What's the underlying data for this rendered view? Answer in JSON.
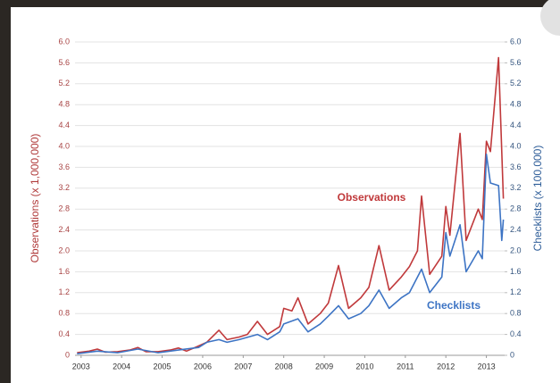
{
  "chart_data": {
    "type": "line",
    "y_label": "Observations (x 1,000,000)",
    "y2_label": "Checklists (x 100,000)",
    "xlim": [
      2002.85,
      2013.45
    ],
    "xticks": [
      2003,
      2004,
      2005,
      2006,
      2007,
      2008,
      2009,
      2010,
      2011,
      2012,
      2013
    ],
    "ylim": [
      0,
      6
    ],
    "yticks": [
      0,
      0.4,
      0.8,
      1.2,
      1.6,
      {
        "value": 2,
        "label": "2.0"
      },
      2.4,
      2.8,
      3.2,
      3.6,
      {
        "value": 4,
        "label": "4.0"
      },
      4.4,
      4.8,
      5.2,
      5.6,
      {
        "value": 6,
        "label": "6.0"
      }
    ],
    "y2lim": [
      0,
      6
    ],
    "y2ticks": [
      0,
      0.4,
      0.8,
      1.2,
      1.6,
      {
        "value": 2,
        "label": "2.0"
      },
      2.4,
      2.8,
      3.2,
      3.6,
      {
        "value": 4,
        "label": "4.0"
      },
      4.4,
      4.8,
      5.2,
      5.6,
      {
        "value": 6,
        "label": "6.0"
      }
    ],
    "grid": true,
    "series": [
      {
        "name": "Observations",
        "color": "#c0393b",
        "axis": "y",
        "x": [
          2002.9,
          2003.2,
          2003.4,
          2003.6,
          2003.9,
          2004.2,
          2004.4,
          2004.6,
          2004.9,
          2005.2,
          2005.4,
          2005.6,
          2005.9,
          2006.1,
          2006.4,
          2006.6,
          2006.9,
          2007.1,
          2007.35,
          2007.6,
          2007.9,
          2008.0,
          2008.2,
          2008.35,
          2008.6,
          2008.9,
          2009.1,
          2009.35,
          2009.6,
          2009.9,
          2010.1,
          2010.35,
          2010.6,
          2010.9,
          2011.1,
          2011.3,
          2011.4,
          2011.6,
          2011.9,
          2012.0,
          2012.1,
          2012.35,
          2012.5,
          2012.8,
          2012.9,
          2013.0,
          2013.1,
          2013.3,
          2013.42
        ],
        "values": [
          0.05,
          0.08,
          0.12,
          0.06,
          0.07,
          0.1,
          0.15,
          0.07,
          0.07,
          0.1,
          0.14,
          0.08,
          0.18,
          0.25,
          0.48,
          0.3,
          0.35,
          0.4,
          0.65,
          0.4,
          0.55,
          0.9,
          0.85,
          1.1,
          0.6,
          0.8,
          1.0,
          1.72,
          0.9,
          1.1,
          1.3,
          2.1,
          1.25,
          1.5,
          1.7,
          2.0,
          3.05,
          1.55,
          1.9,
          2.85,
          2.3,
          4.25,
          2.2,
          2.8,
          2.6,
          4.1,
          3.9,
          5.7,
          3.0
        ]
      },
      {
        "name": "Checklists",
        "color": "#3d74c4",
        "axis": "y2",
        "x": [
          2002.9,
          2003.4,
          2003.9,
          2004.4,
          2004.9,
          2005.4,
          2005.9,
          2006.1,
          2006.4,
          2006.6,
          2006.9,
          2007.35,
          2007.6,
          2007.9,
          2008.0,
          2008.35,
          2008.6,
          2008.9,
          2009.1,
          2009.35,
          2009.6,
          2009.9,
          2010.1,
          2010.35,
          2010.6,
          2010.9,
          2011.1,
          2011.4,
          2011.6,
          2011.9,
          2012.0,
          2012.1,
          2012.35,
          2012.5,
          2012.8,
          2012.9,
          2013.0,
          2013.1,
          2013.3,
          2013.38,
          2013.42
        ],
        "values": [
          0.03,
          0.08,
          0.05,
          0.12,
          0.05,
          0.1,
          0.15,
          0.25,
          0.3,
          0.25,
          0.3,
          0.4,
          0.3,
          0.45,
          0.6,
          0.7,
          0.45,
          0.6,
          0.75,
          0.95,
          0.7,
          0.8,
          0.95,
          1.25,
          0.9,
          1.1,
          1.2,
          1.65,
          1.2,
          1.5,
          2.35,
          1.9,
          2.5,
          1.6,
          2.0,
          1.85,
          3.85,
          3.3,
          3.25,
          2.2,
          2.6
        ]
      }
    ]
  }
}
